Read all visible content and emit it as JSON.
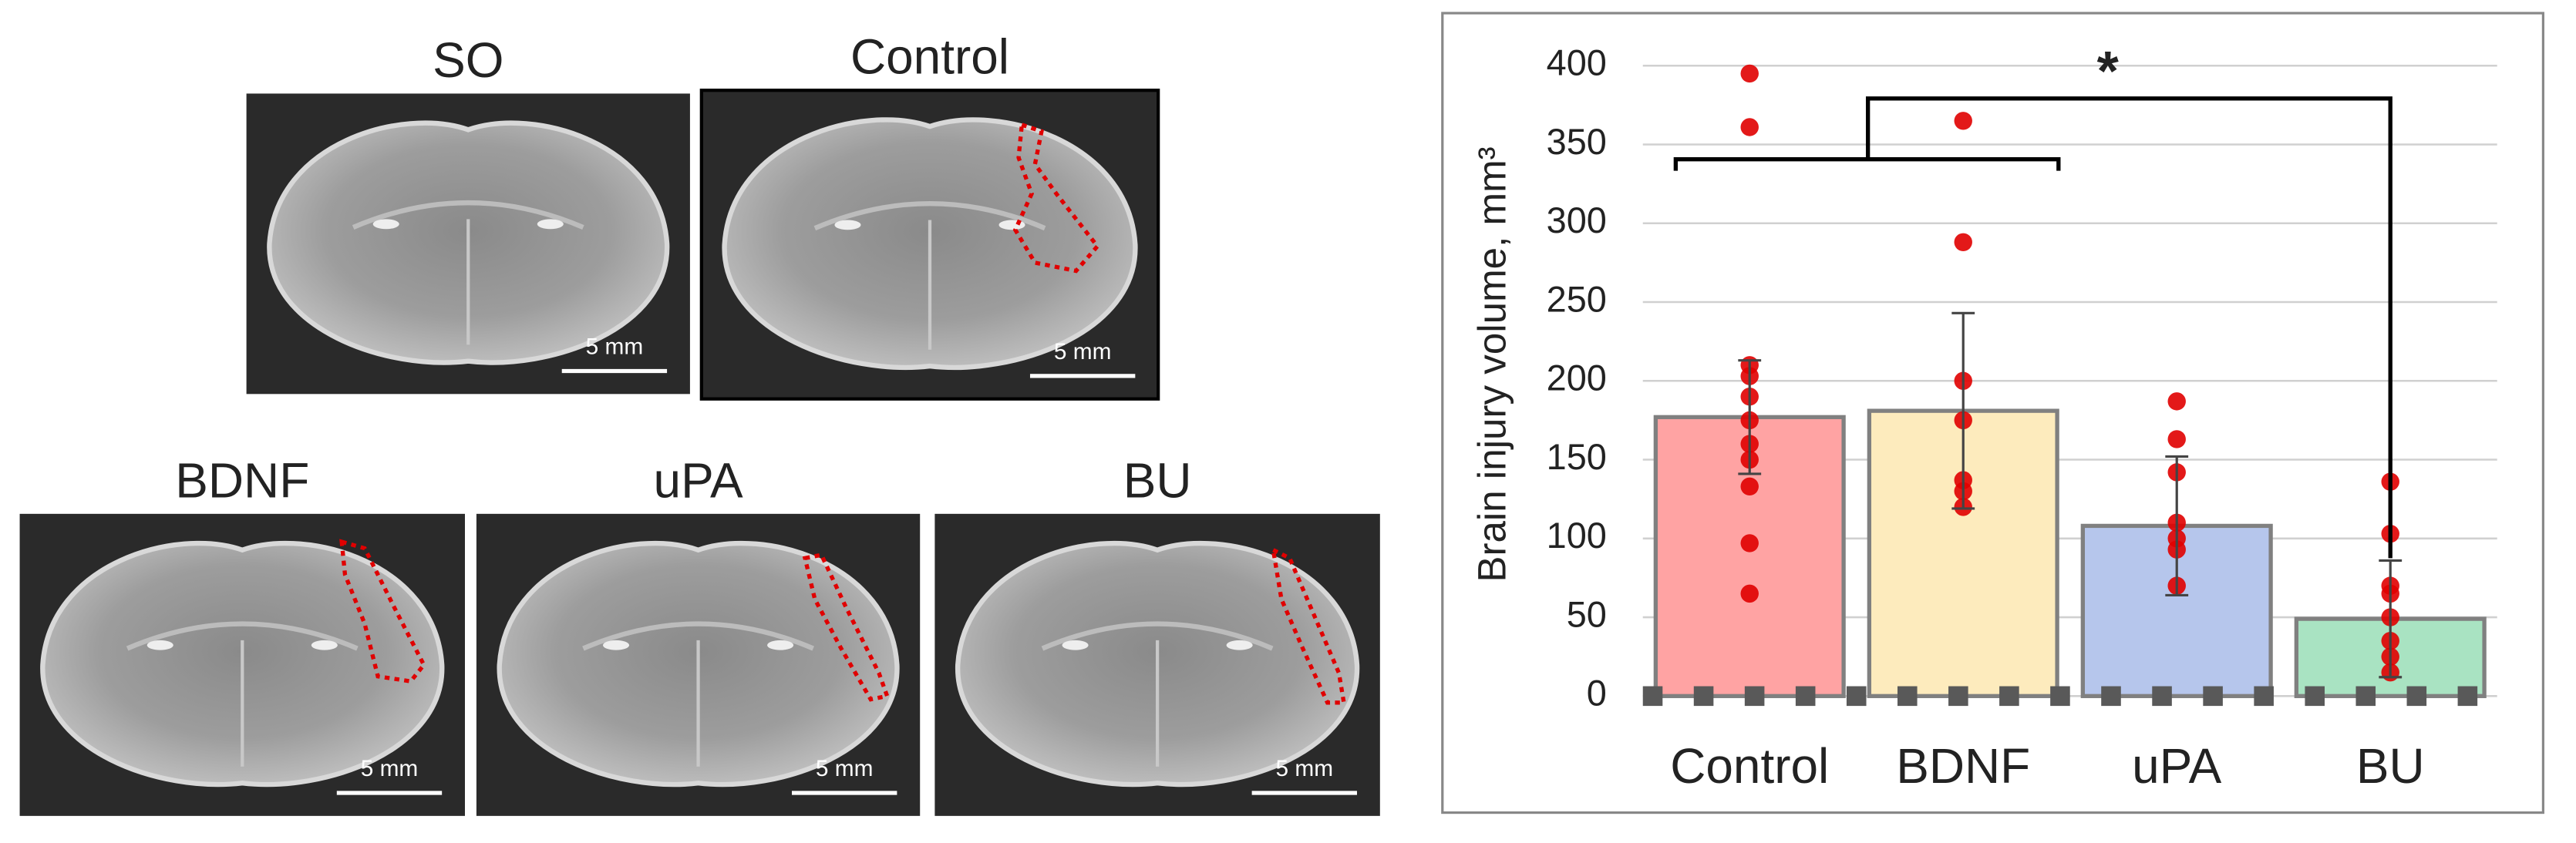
{
  "panels": [
    {
      "label": "SO",
      "scale": "5 mm"
    },
    {
      "label": "Control",
      "scale": "5 mm"
    },
    {
      "label": "BDNF",
      "scale": "5 mm"
    },
    {
      "label": "uPA",
      "scale": "5 mm"
    },
    {
      "label": "BU",
      "scale": "5 mm"
    }
  ],
  "chart_data": {
    "type": "bar",
    "categories": [
      "Control",
      "BDNF",
      "uPA",
      "BU"
    ],
    "values": [
      177,
      181,
      108,
      49
    ],
    "errors": [
      36,
      62,
      44,
      37
    ],
    "colors": [
      "#ffa3a3",
      "#fdebbd",
      "#b6c6ec",
      "#a9e3c2"
    ],
    "points": [
      [
        395,
        361,
        210,
        203,
        190,
        175,
        160,
        150,
        133,
        97,
        65
      ],
      [
        365,
        288,
        200,
        175,
        137,
        130,
        120
      ],
      [
        187,
        163,
        142,
        110,
        100,
        93,
        70
      ],
      [
        136,
        103,
        70,
        65,
        50,
        35,
        25,
        15
      ]
    ],
    "point_color": "#e00000",
    "ylabel": "Brain injury volume, mm³",
    "annotation": "*",
    "ylim": [
      0,
      400
    ],
    "yticks": [
      0,
      50,
      100,
      150,
      200,
      250,
      300,
      350,
      400
    ],
    "grid": true
  }
}
